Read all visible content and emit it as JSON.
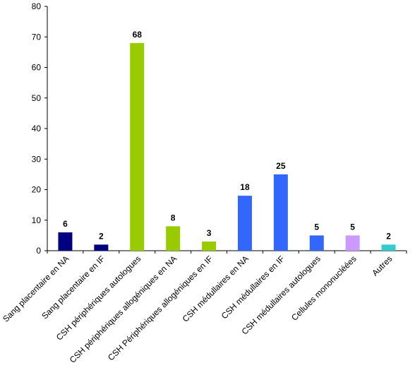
{
  "chart_data": {
    "type": "bar",
    "title": "",
    "xlabel": "",
    "ylabel": "",
    "ylim": [
      0,
      80
    ],
    "yticks": [
      0,
      10,
      20,
      30,
      40,
      50,
      60,
      70,
      80
    ],
    "grid": false,
    "legend": "none",
    "categories": [
      "Sang placentaire en NA",
      "Sang placentaire en IF",
      "CSH périphériques autologues",
      "CSH périphériques allogéniques en NA",
      "CSH Périphériques  allogéniques en IF",
      "CSH médullaires en NA",
      "CSH médullaires en IF",
      "CSH médullaires autologues",
      "Cellules mononucléées",
      "Autres"
    ],
    "values": [
      6,
      2,
      68,
      8,
      3,
      18,
      25,
      5,
      5,
      2
    ],
    "data_labels": [
      "6",
      "2",
      "68",
      "8",
      "3",
      "18",
      "25",
      "5",
      "5",
      "2"
    ],
    "colors": [
      "#000080",
      "#000080",
      "#99cc00",
      "#99cc00",
      "#99cc00",
      "#3366ff",
      "#3366ff",
      "#3366ff",
      "#cc99ff",
      "#33cccc"
    ]
  }
}
